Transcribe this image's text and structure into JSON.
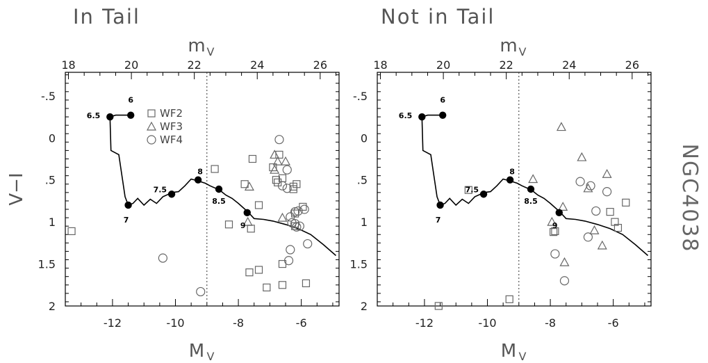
{
  "side_label": "NGC4038",
  "legend": [
    {
      "marker": "square",
      "label": "WF2"
    },
    {
      "marker": "triangle",
      "label": "WF3"
    },
    {
      "marker": "circle",
      "label": "WF4"
    }
  ],
  "colors": {
    "frame": "#000000",
    "markers": "#666666",
    "text": "#555555"
  },
  "chart_data": [
    {
      "type": "scatter",
      "title": "In Tail",
      "xlabel": "M",
      "xlabel_sub": "V",
      "ylabel": "V−I",
      "top_axis_label": "m",
      "top_axis_sub": "V",
      "xlim": [
        -13.5,
        -4.8
      ],
      "ylim": [
        2.0,
        -0.78
      ],
      "x_ticks": [
        -12,
        -10,
        -8,
        -6
      ],
      "x_tick_labels": [
        "-12",
        "-10",
        "-8",
        "-6"
      ],
      "y_ticks": [
        -0.5,
        0,
        0.5,
        1,
        1.5,
        2
      ],
      "y_tick_labels": [
        "-.5",
        "0",
        ".5",
        "1",
        "1.5",
        "2"
      ],
      "top_ticks": [
        18,
        20,
        22,
        24,
        26
      ],
      "top_tick_labels": [
        "18",
        "20",
        "22",
        "24",
        "26"
      ],
      "distance_modulus": 31.4,
      "dashed_line_x": -9.0,
      "track": [
        [
          -11.45,
          -0.27
        ],
        [
          -11.9,
          -0.27
        ],
        [
          -12.08,
          -0.25
        ],
        [
          -12.05,
          0.15
        ],
        [
          -11.8,
          0.2
        ],
        [
          -11.7,
          0.45
        ],
        [
          -11.6,
          0.7
        ],
        [
          -11.5,
          0.8
        ],
        [
          -11.35,
          0.78
        ],
        [
          -11.2,
          0.72
        ],
        [
          -11.0,
          0.8
        ],
        [
          -10.8,
          0.73
        ],
        [
          -10.6,
          0.78
        ],
        [
          -10.4,
          0.7
        ],
        [
          -10.1,
          0.65
        ],
        [
          -9.9,
          0.64
        ],
        [
          -9.7,
          0.57
        ],
        [
          -9.5,
          0.49
        ],
        [
          -9.3,
          0.51
        ],
        [
          -9.05,
          0.54
        ],
        [
          -8.9,
          0.57
        ],
        [
          -8.6,
          0.62
        ],
        [
          -8.4,
          0.68
        ],
        [
          -8.2,
          0.72
        ],
        [
          -8.0,
          0.78
        ],
        [
          -7.7,
          0.88
        ],
        [
          -7.5,
          0.96
        ],
        [
          -7.2,
          0.97
        ],
        [
          -6.9,
          0.99
        ],
        [
          -6.5,
          1.03
        ],
        [
          -6.1,
          1.08
        ],
        [
          -5.7,
          1.15
        ],
        [
          -5.3,
          1.27
        ],
        [
          -4.9,
          1.4
        ]
      ],
      "points": [
        {
          "x": -11.42,
          "y": -0.27,
          "label": "6"
        },
        {
          "x": -12.08,
          "y": -0.25,
          "label": "6.5"
        },
        {
          "x": -11.5,
          "y": 0.8,
          "label": "7"
        },
        {
          "x": -10.12,
          "y": 0.67,
          "label": "7.5"
        },
        {
          "x": -9.28,
          "y": 0.5,
          "label": "8"
        },
        {
          "x": -8.62,
          "y": 0.61,
          "label": "8.5"
        },
        {
          "x": -7.72,
          "y": 0.89,
          "label": "9"
        }
      ],
      "series": [
        {
          "name": "WF2",
          "marker": "square",
          "x": [
            -13.3,
            -8.75,
            -7.55,
            -6.7,
            -6.8,
            -6.15,
            -6.25,
            -6.6,
            -6.75,
            -6.9,
            -7.8,
            -8.3,
            -7.35,
            -7.65,
            -7.1,
            -7.6,
            -7.35,
            -6.6,
            -5.85,
            -6.6,
            -6.25,
            -5.95,
            -6.2,
            -6.2
          ],
          "y": [
            1.11,
            0.37,
            0.25,
            0.2,
            0.5,
            0.55,
            0.61,
            0.48,
            0.53,
            0.35,
            0.55,
            1.03,
            0.8,
            1.6,
            1.78,
            1.08,
            1.57,
            1.75,
            1.73,
            1.5,
            0.58,
            0.82,
            0.9,
            1.05
          ]
        },
        {
          "name": "WF3",
          "marker": "triangle",
          "x": [
            -7.65,
            -6.85,
            -6.75,
            -6.5,
            -6.6,
            -6.85,
            -7.7
          ],
          "y": [
            0.58,
            0.2,
            0.28,
            0.28,
            0.95,
            0.38,
            1.0
          ]
        },
        {
          "name": "WF4",
          "marker": "circle",
          "x": [
            -10.4,
            -9.2,
            -6.7,
            -6.45,
            -6.45,
            -6.2,
            -6.1,
            -6.05,
            -6.3,
            -6.15,
            -5.9,
            -6.6,
            -6.35,
            -6.4,
            -5.8,
            -6.35,
            -6.2
          ],
          "y": [
            1.43,
            1.83,
            0.02,
            0.38,
            0.6,
            0.88,
            0.87,
            1.05,
            1.01,
            1.06,
            0.85,
            0.57,
            1.33,
            1.46,
            1.26,
            0.94,
            1.02
          ]
        }
      ]
    },
    {
      "type": "scatter",
      "title": "Not in Tail",
      "xlabel": "M",
      "xlabel_sub": "V",
      "ylabel": "",
      "top_axis_label": "m",
      "top_axis_sub": "V",
      "xlim": [
        -13.5,
        -4.8
      ],
      "ylim": [
        2.0,
        -0.78
      ],
      "x_ticks": [
        -12,
        -10,
        -8,
        -6
      ],
      "x_tick_labels": [
        "-12",
        "-10",
        "-8",
        "-6"
      ],
      "y_ticks": [
        -0.5,
        0,
        0.5,
        1,
        1.5,
        2
      ],
      "y_tick_labels": [
        "-.5",
        "0",
        ".5",
        "1",
        "1.5",
        "2"
      ],
      "top_ticks": [
        18,
        20,
        22,
        24,
        26
      ],
      "top_tick_labels": [
        "18",
        "20",
        "22",
        "24",
        "26"
      ],
      "distance_modulus": 31.4,
      "dashed_line_x": -9.0,
      "track": [
        [
          -11.45,
          -0.27
        ],
        [
          -11.9,
          -0.27
        ],
        [
          -12.08,
          -0.25
        ],
        [
          -12.05,
          0.15
        ],
        [
          -11.8,
          0.2
        ],
        [
          -11.7,
          0.45
        ],
        [
          -11.6,
          0.7
        ],
        [
          -11.5,
          0.8
        ],
        [
          -11.35,
          0.78
        ],
        [
          -11.2,
          0.72
        ],
        [
          -11.0,
          0.8
        ],
        [
          -10.8,
          0.73
        ],
        [
          -10.6,
          0.78
        ],
        [
          -10.4,
          0.7
        ],
        [
          -10.1,
          0.65
        ],
        [
          -9.9,
          0.64
        ],
        [
          -9.7,
          0.57
        ],
        [
          -9.5,
          0.49
        ],
        [
          -9.3,
          0.51
        ],
        [
          -9.05,
          0.54
        ],
        [
          -8.9,
          0.57
        ],
        [
          -8.6,
          0.62
        ],
        [
          -8.4,
          0.68
        ],
        [
          -8.2,
          0.72
        ],
        [
          -8.0,
          0.78
        ],
        [
          -7.7,
          0.88
        ],
        [
          -7.5,
          0.96
        ],
        [
          -7.2,
          0.97
        ],
        [
          -6.9,
          0.99
        ],
        [
          -6.5,
          1.03
        ],
        [
          -6.1,
          1.08
        ],
        [
          -5.7,
          1.15
        ],
        [
          -5.3,
          1.27
        ],
        [
          -4.9,
          1.4
        ]
      ],
      "points": [
        {
          "x": -11.42,
          "y": -0.27,
          "label": "6"
        },
        {
          "x": -12.08,
          "y": -0.25,
          "label": "6.5"
        },
        {
          "x": -11.5,
          "y": 0.8,
          "label": "7"
        },
        {
          "x": -10.12,
          "y": 0.67,
          "label": "7.5"
        },
        {
          "x": -9.28,
          "y": 0.5,
          "label": "8"
        },
        {
          "x": -8.62,
          "y": 0.61,
          "label": "8.5"
        },
        {
          "x": -7.72,
          "y": 0.89,
          "label": "9"
        }
      ],
      "series": [
        {
          "name": "WF2",
          "marker": "square",
          "x": [
            -10.6,
            -11.55,
            -9.3,
            -7.85,
            -6.1,
            -5.95,
            -5.85,
            -7.9,
            -5.6
          ],
          "y": [
            0.62,
            2.0,
            1.92,
            1.11,
            0.88,
            1.0,
            1.07,
            1.12,
            0.77
          ]
        },
        {
          "name": "WF3",
          "marker": "triangle",
          "x": [
            -8.55,
            -7.65,
            -7.0,
            -7.6,
            -6.2,
            -6.8,
            -7.55,
            -7.95,
            -6.35,
            -6.6
          ],
          "y": [
            0.49,
            -0.13,
            0.23,
            0.82,
            0.43,
            0.6,
            1.48,
            1.0,
            1.28,
            1.1
          ]
        },
        {
          "name": "WF4",
          "marker": "circle",
          "x": [
            -7.05,
            -6.72,
            -6.2,
            -6.55,
            -6.8,
            -7.85,
            -7.55
          ],
          "y": [
            0.52,
            0.57,
            0.64,
            0.87,
            1.18,
            1.38,
            1.7
          ]
        }
      ]
    }
  ]
}
